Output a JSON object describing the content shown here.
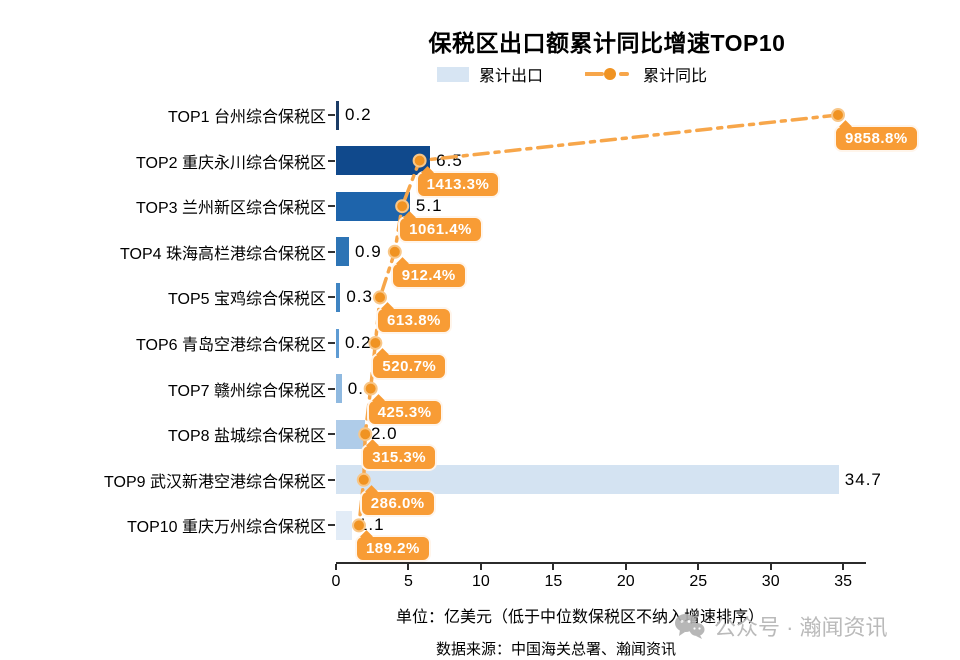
{
  "title": "保税区出口额累计同比增速TOP10",
  "legend": {
    "bar_label": "累计出口",
    "line_label": "累计同比"
  },
  "colors": {
    "legend_bar_swatch": "#d7e5f3",
    "line_orange": "#f7a64a",
    "marker_orange": "#f09322",
    "marker_ring": "#f8c687",
    "label_box_orange": "#f89c35",
    "axis_color": "#2b2b2b",
    "watermark_gray": "#b3b3b3"
  },
  "chart_data": {
    "type": "bar",
    "orientation": "horizontal",
    "title": "保税区出口额累计同比增速TOP10",
    "legend_position": "top",
    "grid": false,
    "categories": [
      "TOP1 台州综合保税区",
      "TOP2 重庆永川综合保税区",
      "TOP3 兰州新区综合保税区",
      "TOP4 珠海高栏港综合保税区",
      "TOP5 宝鸡综合保税区",
      "TOP6 青岛空港综合保税区",
      "TOP7 赣州综合保税区",
      "TOP8 盐城综合保税区",
      "TOP9 武汉新港空港综合保税区",
      "TOP10 重庆万州综合保税区"
    ],
    "series": [
      {
        "name": "累计出口",
        "type": "bar",
        "unit": "亿美元",
        "values": [
          0.2,
          6.5,
          5.1,
          0.9,
          0.3,
          0.2,
          0.4,
          2.0,
          34.7,
          1.1
        ],
        "labels": [
          "0.2",
          "6.5",
          "5.1",
          "0.9",
          "0.3",
          "0.2",
          "0.4",
          "2.0",
          "34.7",
          "1.1"
        ],
        "bar_colors": [
          "#1b3c66",
          "#10498c",
          "#1e64ab",
          "#2d74b5",
          "#3f84c2",
          "#5e9bd3",
          "#8fb9e0",
          "#afcce9",
          "#d4e3f2",
          "#e2ecf7"
        ]
      },
      {
        "name": "累计同比",
        "type": "line",
        "unit": "%",
        "values": [
          9858.8,
          1413.3,
          1061.4,
          912.4,
          613.8,
          520.7,
          425.3,
          315.3,
          286.0,
          189.2
        ],
        "labels": [
          "9858.8%",
          "1413.3%",
          "1061.4%",
          "912.4%",
          "613.8%",
          "520.7%",
          "425.3%",
          "315.3%",
          "286.0%",
          "189.2%"
        ]
      }
    ],
    "xlim": [
      0,
      35
    ],
    "x_ticks": [
      "0",
      "5",
      "10",
      "15",
      "20",
      "25",
      "30",
      "35"
    ]
  },
  "footer": {
    "unit_note": "单位：亿美元（低于中位数保税区不纳入增速排序）",
    "source": "数据来源：中国海关总署、瀚闻资讯"
  },
  "watermark": {
    "icon": "wechat-icon",
    "text": "公众号 · 瀚闻资讯"
  }
}
